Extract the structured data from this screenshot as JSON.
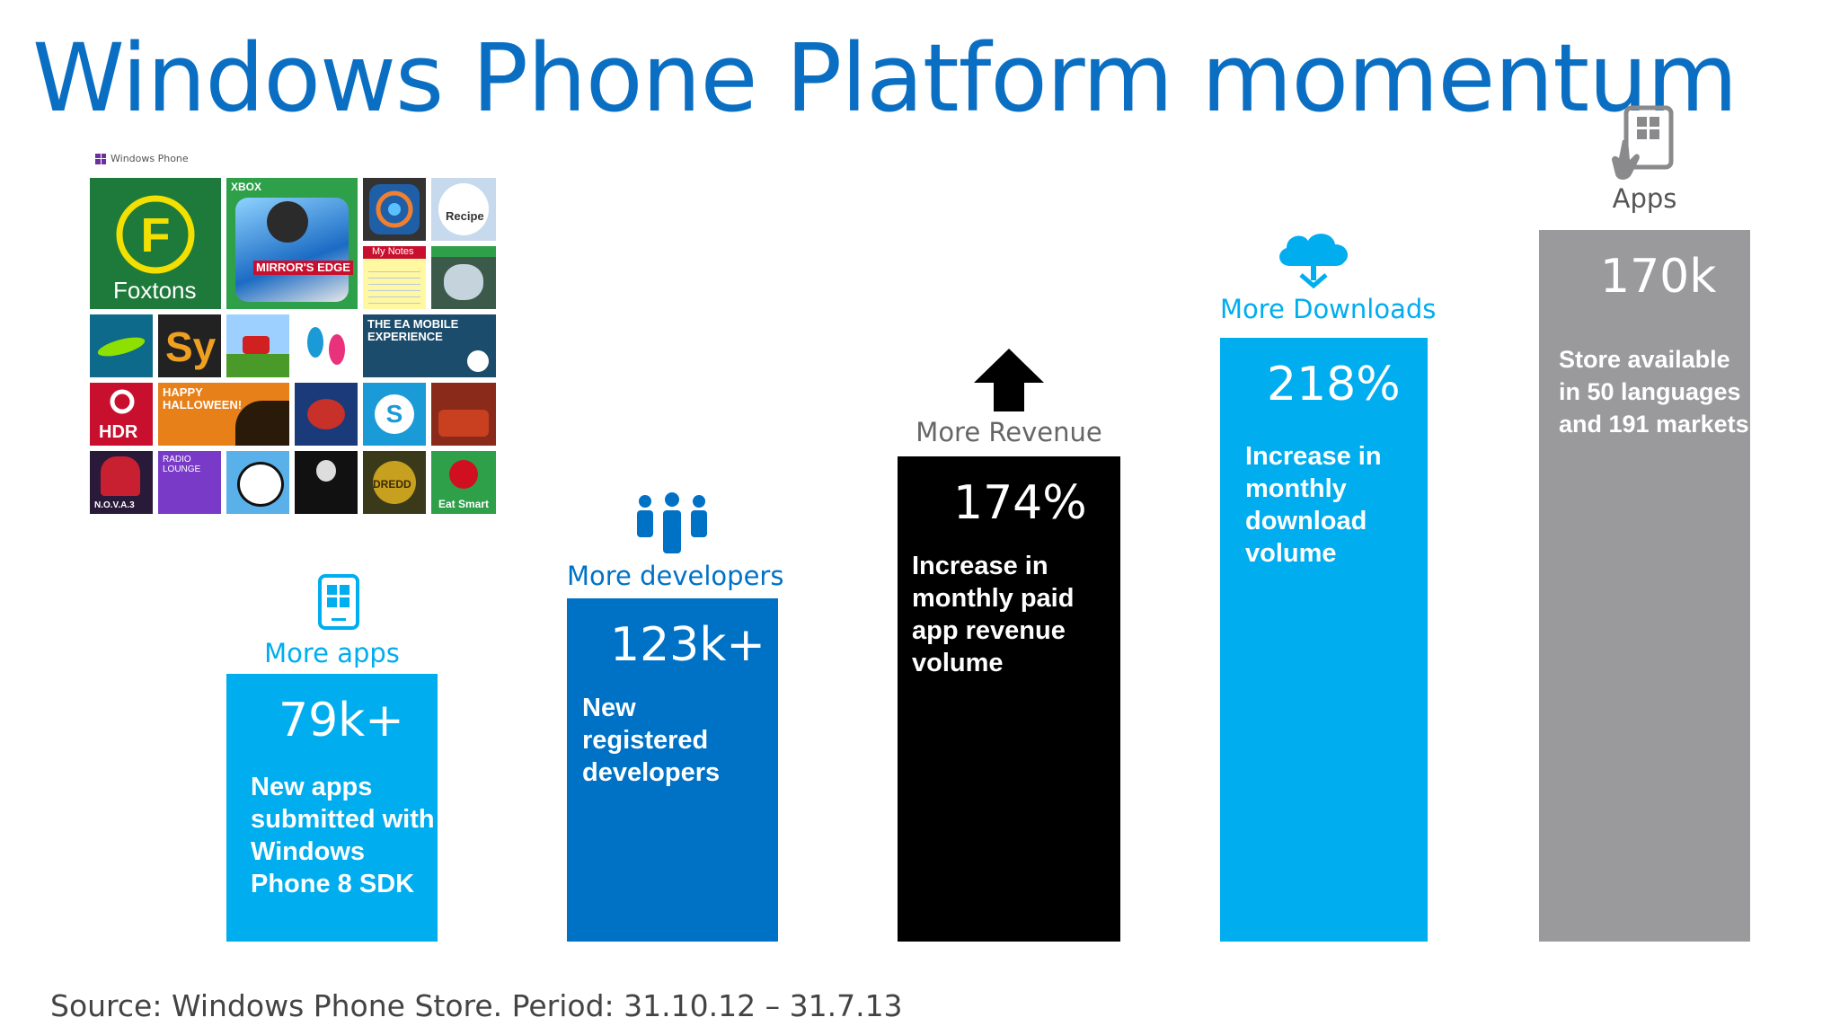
{
  "title": "Windows Phone Platform momentum",
  "source": "Source: Windows Phone Store.  Period: 31.10.12  – 31.7.13",
  "logo_text": "Windows Phone",
  "colors": {
    "title": "#0a6fc2",
    "light_blue": "#00adef",
    "mid_blue": "#0072c6",
    "black": "#000000",
    "gray": "#9a9a9c"
  },
  "tiles": {
    "foxtons": "Foxtons",
    "xbox": "XBOX",
    "mirrors_edge": "MIRROR'S EDGE",
    "recipe": "Recipe",
    "my_notes": "My Notes",
    "sy": "Sy",
    "ea_mobile": "THE EA MOBILE EXPERIENCE",
    "hdr": "HDR",
    "halloween": "HAPPY HALLOWEEN!",
    "radio": "RADIO LOUNGE",
    "nova": "N.O.V.A.3",
    "dredd": "DREDD",
    "eat_smart": "Eat Smart"
  },
  "stats": [
    {
      "label": "More apps",
      "value": "79k+",
      "desc": "New apps submitted with Windows Phone 8 SDK",
      "icon": "phone-icon"
    },
    {
      "label": "More developers",
      "value": "123k+",
      "desc": "New registered developers",
      "icon": "people-icon"
    },
    {
      "label": "More Revenue",
      "value": "174%",
      "desc": "Increase in monthly paid app revenue volume",
      "icon": "up-arrow-icon"
    },
    {
      "label": "More Downloads",
      "value": "218%",
      "desc": "Increase in monthly download volume",
      "icon": "cloud-download-icon"
    },
    {
      "label": "Apps",
      "value": "170k",
      "desc": "Store available in 50 languages and 191 markets",
      "icon": "touch-tablet-icon"
    }
  ]
}
